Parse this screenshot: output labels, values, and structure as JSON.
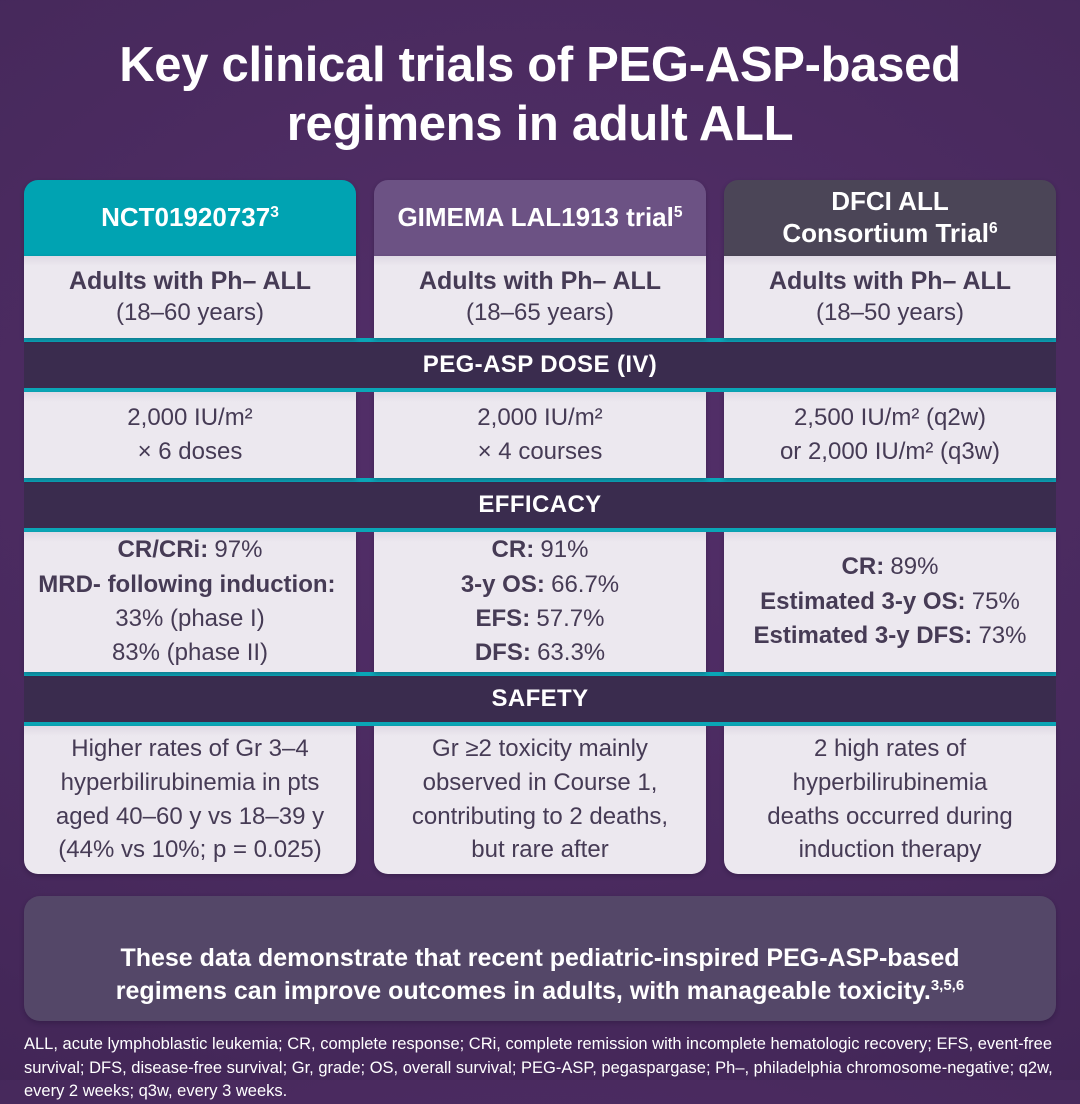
{
  "title": "Key clinical trials of PEG-ASP-based\nregimens in adult ALL",
  "colors": {
    "background": "#47295C",
    "band_background": "#3A2C4E",
    "teal_accent": "#0AA6B6",
    "header_col1": "#00A3B2",
    "header_col2": "#6C5284",
    "header_col3": "#4B4557",
    "cell_background": "#ECE8EF",
    "cell_text": "#463B55",
    "summary_background": "#544768",
    "text_white": "#FFFFFF"
  },
  "bands": {
    "dose": "PEG-ASP DOSE (IV)",
    "efficacy": "EFFICACY",
    "safety": "SAFETY"
  },
  "columns": [
    {
      "header": {
        "text": "NCT01920737",
        "sup": "3"
      },
      "population": {
        "bold": "Adults with Ph– ALL",
        "detail": "(18–60 years)"
      },
      "dose": "2,000 IU/m²\n× 6 doses",
      "efficacy": [
        {
          "label": "CR/CRi:",
          "value": "97%"
        },
        {
          "label": "MRD- following induction:",
          "value": ""
        },
        {
          "label": "",
          "value": "33% (phase I)"
        },
        {
          "label": "",
          "value": "83% (phase II)"
        }
      ],
      "safety": "Higher rates of Gr 3–4\nhyperbilirubinemia in pts\naged 40–60 y vs 18–39 y\n(44% vs 10%; p = 0.025)"
    },
    {
      "header": {
        "text": "GIMEMA LAL1913 trial",
        "sup": "5"
      },
      "population": {
        "bold": "Adults with Ph– ALL",
        "detail": "(18–65 years)"
      },
      "dose": "2,000 IU/m²\n× 4 courses",
      "efficacy": [
        {
          "label": "CR:",
          "value": "91%"
        },
        {
          "label": "3-y OS:",
          "value": "66.7%"
        },
        {
          "label": "EFS:",
          "value": "57.7%"
        },
        {
          "label": "DFS:",
          "value": "63.3%"
        }
      ],
      "safety": "Gr ≥2 toxicity mainly\nobserved in Course 1,\ncontributing to 2 deaths,\nbut rare after"
    },
    {
      "header": {
        "text": "DFCI ALL\nConsortium Trial",
        "sup": "6"
      },
      "population": {
        "bold": "Adults with Ph– ALL",
        "detail": "(18–50 years)"
      },
      "dose": "2,500 IU/m² (q2w)\nor 2,000 IU/m² (q3w)",
      "efficacy": [
        {
          "label": "CR:",
          "value": "89%"
        },
        {
          "label": "Estimated 3-y OS:",
          "value": "75%"
        },
        {
          "label": "Estimated 3-y DFS:",
          "value": "73%"
        }
      ],
      "safety": "2 high rates of\nhyperbilirubinemia\ndeaths occurred during\ninduction therapy"
    }
  ],
  "summary": {
    "text": "These data demonstrate that recent pediatric-inspired PEG-ASP-based\nregimens can improve outcomes in adults, with manageable toxicity.",
    "sup": "3,5,6"
  },
  "footnote": "ALL, acute lymphoblastic leukemia; CR, complete response; CRi, complete remission with incomplete hematologic recovery;  EFS, event-free survival; DFS, disease-free survival; Gr, grade; OS, overall survival; PEG-ASP, pegaspargase; Ph–, philadelphia chromosome-negative; q2w, every 2 weeks; q3w, every 3 weeks."
}
